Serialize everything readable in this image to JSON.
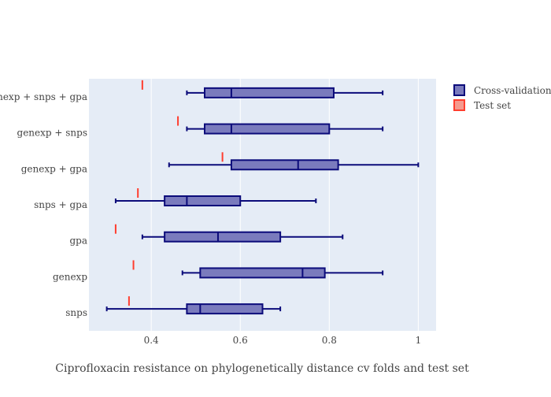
{
  "chart_data": {
    "type": "box",
    "orientation": "horizontal",
    "xlabel": "Ciprofloxacin resistance on phylogenetically distance cv folds and test set",
    "xlim": [
      0.26,
      1.04
    ],
    "xticks": [
      0.4,
      0.6,
      0.8,
      1
    ],
    "xtick_labels": [
      "0.4",
      "0.6",
      "0.8",
      "1"
    ],
    "grid": true,
    "legend_position": "top-right",
    "categories": [
      "snps",
      "genexp",
      "gpa",
      "snps + gpa",
      "genexp + gpa",
      "genexp + snps",
      "genexp + snps + gpa"
    ],
    "series": [
      {
        "name": "Cross-validation",
        "fill_color": "#7a7bbd",
        "line_color": "#0b0b7a",
        "boxes": [
          {
            "category": "snps",
            "min": 0.3,
            "q1": 0.48,
            "median": 0.51,
            "q3": 0.65,
            "max": 0.69
          },
          {
            "category": "genexp",
            "min": 0.47,
            "q1": 0.51,
            "median": 0.74,
            "q3": 0.79,
            "max": 0.92
          },
          {
            "category": "gpa",
            "min": 0.38,
            "q1": 0.43,
            "median": 0.55,
            "q3": 0.69,
            "max": 0.83
          },
          {
            "category": "snps + gpa",
            "min": 0.32,
            "q1": 0.43,
            "median": 0.48,
            "q3": 0.6,
            "max": 0.77
          },
          {
            "category": "genexp + gpa",
            "min": 0.44,
            "q1": 0.58,
            "median": 0.73,
            "q3": 0.82,
            "max": 1.0
          },
          {
            "category": "genexp + snps",
            "min": 0.48,
            "q1": 0.52,
            "median": 0.58,
            "q3": 0.8,
            "max": 0.92
          },
          {
            "category": "genexp + snps + gpa",
            "min": 0.48,
            "q1": 0.52,
            "median": 0.58,
            "q3": 0.81,
            "max": 0.92
          }
        ]
      },
      {
        "name": "Test set",
        "fill_color": "#f59a8e",
        "line_color": "#ff3d2e",
        "points": [
          {
            "category": "snps",
            "value": 0.35
          },
          {
            "category": "genexp",
            "value": 0.36
          },
          {
            "category": "gpa",
            "value": 0.32
          },
          {
            "category": "snps + gpa",
            "value": 0.37
          },
          {
            "category": "genexp + gpa",
            "value": 0.56
          },
          {
            "category": "genexp + snps",
            "value": 0.46
          },
          {
            "category": "genexp + snps + gpa",
            "value": 0.38
          }
        ]
      }
    ]
  },
  "colors": {
    "plot_background": "#e5ecf6",
    "grid": "#ffffff",
    "text": "#444444"
  }
}
